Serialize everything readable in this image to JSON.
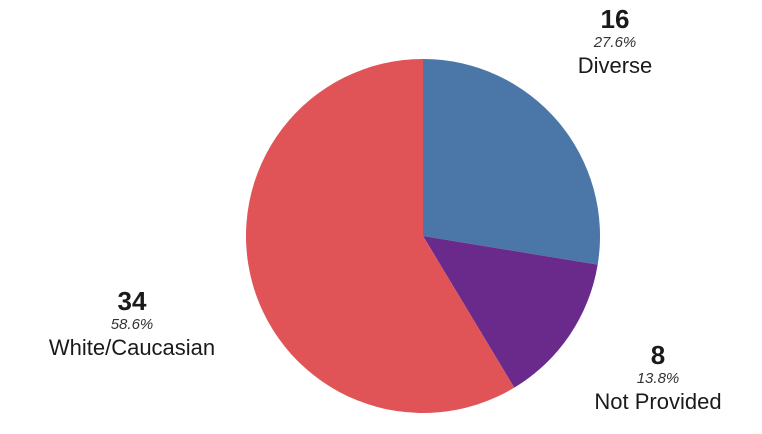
{
  "chart_data": {
    "type": "pie",
    "title": "",
    "start_angle_deg": 0,
    "direction": "clockwise",
    "slices": [
      {
        "label": "Diverse",
        "value": 16,
        "percent": "27.6%",
        "color": "#4a77a8"
      },
      {
        "label": "Not Provided",
        "value": 8,
        "percent": "13.8%",
        "color": "#6a2a8c"
      },
      {
        "label": "White/Caucasian",
        "value": 34,
        "percent": "58.6%",
        "color": "#e05458"
      }
    ]
  }
}
